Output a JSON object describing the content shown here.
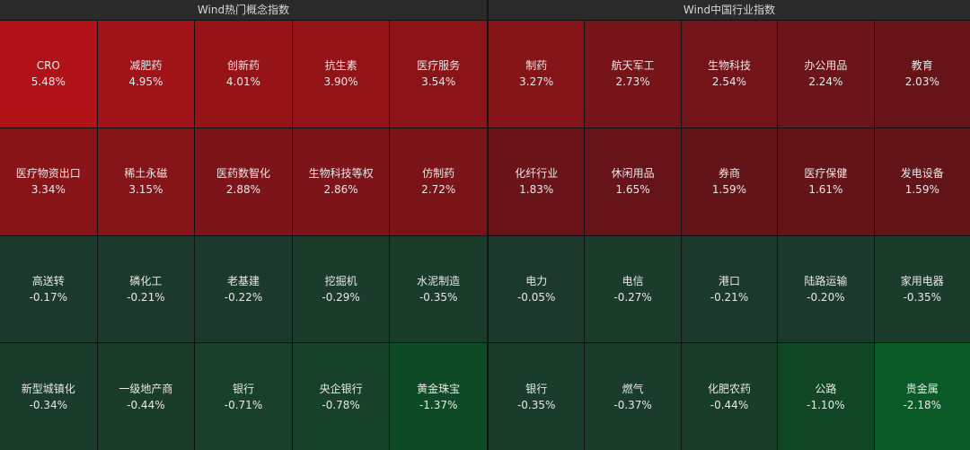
{
  "panels": [
    {
      "title": "Wind热门概念指数",
      "rows": [
        [
          {
            "name": "CRO",
            "change": "5.48%",
            "color": "#b01218"
          },
          {
            "name": "减肥药",
            "change": "4.95%",
            "color": "#a01318"
          },
          {
            "name": "创新药",
            "change": "4.01%",
            "color": "#961418"
          },
          {
            "name": "抗生素",
            "change": "3.90%",
            "color": "#931418"
          },
          {
            "name": "医疗服务",
            "change": "3.54%",
            "color": "#8a1418"
          }
        ],
        [
          {
            "name": "医疗物资出口",
            "change": "3.34%",
            "color": "#881418"
          },
          {
            "name": "稀土永磁",
            "change": "3.15%",
            "color": "#851418"
          },
          {
            "name": "医药数智化",
            "change": "2.88%",
            "color": "#7d1419"
          },
          {
            "name": "生物科技等权",
            "change": "2.86%",
            "color": "#7c1419"
          },
          {
            "name": "仿制药",
            "change": "2.72%",
            "color": "#7a1419"
          }
        ],
        [
          {
            "name": "高送转",
            "change": "-0.17%",
            "color": "#1c3a2b"
          },
          {
            "name": "磷化工",
            "change": "-0.21%",
            "color": "#1c3a2b"
          },
          {
            "name": "老基建",
            "change": "-0.22%",
            "color": "#1c3a2b"
          },
          {
            "name": "挖掘机",
            "change": "-0.29%",
            "color": "#1b3b2b"
          },
          {
            "name": "水泥制造",
            "change": "-0.35%",
            "color": "#1a3c2a"
          }
        ],
        [
          {
            "name": "新型城镇化",
            "change": "-0.34%",
            "color": "#1a3c2a"
          },
          {
            "name": "一级地产商",
            "change": "-0.44%",
            "color": "#1a3d2a"
          },
          {
            "name": "银行",
            "change": "-0.71%",
            "color": "#18402a"
          },
          {
            "name": "央企银行",
            "change": "-0.78%",
            "color": "#174229"
          },
          {
            "name": "黄金珠宝",
            "change": "-1.37%",
            "color": "#0f4a26"
          }
        ]
      ]
    },
    {
      "title": "Wind中国行业指数",
      "rows": [
        [
          {
            "name": "制药",
            "change": "3.27%",
            "color": "#841418"
          },
          {
            "name": "航天军工",
            "change": "2.73%",
            "color": "#761419"
          },
          {
            "name": "生物科技",
            "change": "2.54%",
            "color": "#721419"
          },
          {
            "name": "办公用品",
            "change": "2.24%",
            "color": "#6b1419"
          },
          {
            "name": "教育",
            "change": "2.03%",
            "color": "#671419"
          }
        ],
        [
          {
            "name": "化纤行业",
            "change": "1.83%",
            "color": "#6a1419"
          },
          {
            "name": "休闲用品",
            "change": "1.65%",
            "color": "#661419"
          },
          {
            "name": "券商",
            "change": "1.59%",
            "color": "#621419"
          },
          {
            "name": "医疗保健",
            "change": "1.61%",
            "color": "#641419"
          },
          {
            "name": "发电设备",
            "change": "1.59%",
            "color": "#621419"
          }
        ],
        [
          {
            "name": "电力",
            "change": "-0.05%",
            "color": "#1d392b"
          },
          {
            "name": "电信",
            "change": "-0.27%",
            "color": "#1b3b2b"
          },
          {
            "name": "港口",
            "change": "-0.21%",
            "color": "#1c3a2b"
          },
          {
            "name": "陆路运输",
            "change": "-0.20%",
            "color": "#1c3a2b"
          },
          {
            "name": "家用电器",
            "change": "-0.35%",
            "color": "#1a3c2a"
          }
        ],
        [
          {
            "name": "银行",
            "change": "-0.35%",
            "color": "#1a3c2a"
          },
          {
            "name": "燃气",
            "change": "-0.37%",
            "color": "#1a3c2a"
          },
          {
            "name": "化肥农药",
            "change": "-0.44%",
            "color": "#1a3d2a"
          },
          {
            "name": "公路",
            "change": "-1.10%",
            "color": "#124726"
          },
          {
            "name": "贵金属",
            "change": "-2.18%",
            "color": "#0a5a28"
          }
        ]
      ]
    }
  ]
}
